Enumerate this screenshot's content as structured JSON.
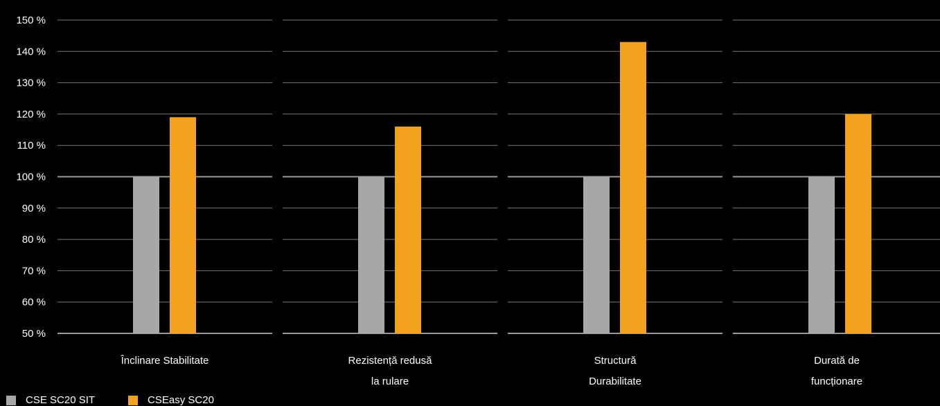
{
  "chart_data": {
    "type": "bar",
    "categories": [
      [
        "Înclinare  Stabilitate"
      ],
      [
        "Rezistență redusă",
        "la rulare"
      ],
      [
        "Structură",
        "Durabilitate"
      ],
      [
        "Durată de",
        "funcționare"
      ]
    ],
    "series": [
      {
        "name": "CSE SC20 SIT",
        "color": "#a7a7a5",
        "values": [
          100,
          100,
          100,
          100
        ]
      },
      {
        "name": "CSEasy SC20",
        "color": "#f2a21f",
        "values": [
          119,
          116,
          143,
          120
        ]
      }
    ],
    "ylim": [
      50,
      150
    ],
    "yticks": [
      50,
      60,
      70,
      80,
      90,
      100,
      110,
      120,
      130,
      140,
      150
    ],
    "ytick_labels": [
      "50 %",
      "60 %",
      "70 %",
      "80 %",
      "90 %",
      "100 %",
      "110 %",
      "120 %",
      "130 %",
      "140 %",
      "150 %"
    ],
    "grid": true,
    "legend_position": "bottom-left",
    "colors": {
      "background": "#000000",
      "grid": "#7a7a7a",
      "text": "#ffffff"
    }
  }
}
